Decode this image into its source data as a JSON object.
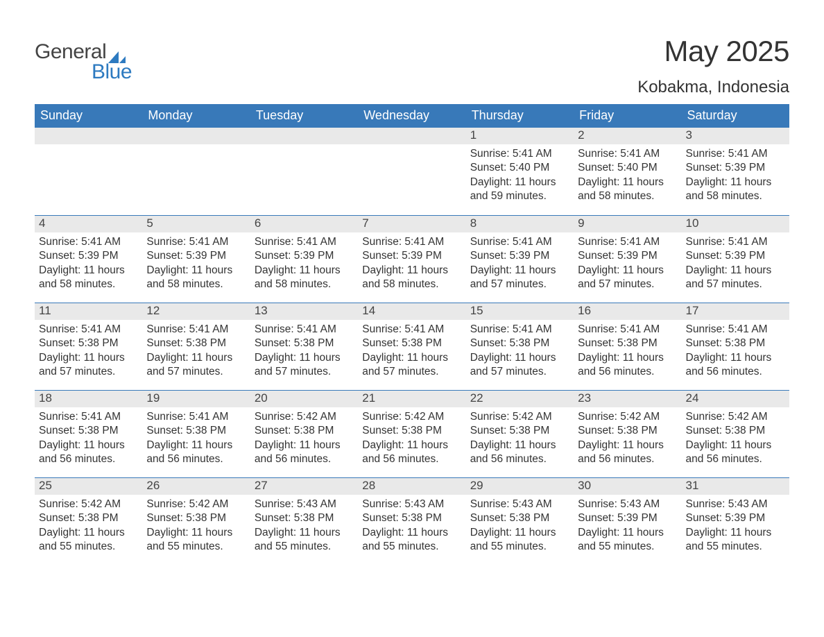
{
  "logo": {
    "text1": "General",
    "text2": "Blue",
    "triangle_color": "#2d7ac0",
    "text_color": "#444444"
  },
  "title": "May 2025",
  "location": "Kobakma, Indonesia",
  "header_bg": "#3879b9",
  "header_fg": "#ffffff",
  "daynum_bg": "#e9e9e9",
  "border_color": "#3879b9",
  "text_color": "#333333",
  "body_font_size": 15.5,
  "dayHeaders": [
    "Sunday",
    "Monday",
    "Tuesday",
    "Wednesday",
    "Thursday",
    "Friday",
    "Saturday"
  ],
  "weeks": [
    [
      {
        "empty": true
      },
      {
        "empty": true
      },
      {
        "empty": true
      },
      {
        "empty": true
      },
      {
        "day": "1",
        "sunrise": "5:41 AM",
        "sunset": "5:40 PM",
        "daylight": "11 hours and 59 minutes."
      },
      {
        "day": "2",
        "sunrise": "5:41 AM",
        "sunset": "5:40 PM",
        "daylight": "11 hours and 58 minutes."
      },
      {
        "day": "3",
        "sunrise": "5:41 AM",
        "sunset": "5:39 PM",
        "daylight": "11 hours and 58 minutes."
      }
    ],
    [
      {
        "day": "4",
        "sunrise": "5:41 AM",
        "sunset": "5:39 PM",
        "daylight": "11 hours and 58 minutes."
      },
      {
        "day": "5",
        "sunrise": "5:41 AM",
        "sunset": "5:39 PM",
        "daylight": "11 hours and 58 minutes."
      },
      {
        "day": "6",
        "sunrise": "5:41 AM",
        "sunset": "5:39 PM",
        "daylight": "11 hours and 58 minutes."
      },
      {
        "day": "7",
        "sunrise": "5:41 AM",
        "sunset": "5:39 PM",
        "daylight": "11 hours and 58 minutes."
      },
      {
        "day": "8",
        "sunrise": "5:41 AM",
        "sunset": "5:39 PM",
        "daylight": "11 hours and 57 minutes."
      },
      {
        "day": "9",
        "sunrise": "5:41 AM",
        "sunset": "5:39 PM",
        "daylight": "11 hours and 57 minutes."
      },
      {
        "day": "10",
        "sunrise": "5:41 AM",
        "sunset": "5:39 PM",
        "daylight": "11 hours and 57 minutes."
      }
    ],
    [
      {
        "day": "11",
        "sunrise": "5:41 AM",
        "sunset": "5:38 PM",
        "daylight": "11 hours and 57 minutes."
      },
      {
        "day": "12",
        "sunrise": "5:41 AM",
        "sunset": "5:38 PM",
        "daylight": "11 hours and 57 minutes."
      },
      {
        "day": "13",
        "sunrise": "5:41 AM",
        "sunset": "5:38 PM",
        "daylight": "11 hours and 57 minutes."
      },
      {
        "day": "14",
        "sunrise": "5:41 AM",
        "sunset": "5:38 PM",
        "daylight": "11 hours and 57 minutes."
      },
      {
        "day": "15",
        "sunrise": "5:41 AM",
        "sunset": "5:38 PM",
        "daylight": "11 hours and 57 minutes."
      },
      {
        "day": "16",
        "sunrise": "5:41 AM",
        "sunset": "5:38 PM",
        "daylight": "11 hours and 56 minutes."
      },
      {
        "day": "17",
        "sunrise": "5:41 AM",
        "sunset": "5:38 PM",
        "daylight": "11 hours and 56 minutes."
      }
    ],
    [
      {
        "day": "18",
        "sunrise": "5:41 AM",
        "sunset": "5:38 PM",
        "daylight": "11 hours and 56 minutes."
      },
      {
        "day": "19",
        "sunrise": "5:41 AM",
        "sunset": "5:38 PM",
        "daylight": "11 hours and 56 minutes."
      },
      {
        "day": "20",
        "sunrise": "5:42 AM",
        "sunset": "5:38 PM",
        "daylight": "11 hours and 56 minutes."
      },
      {
        "day": "21",
        "sunrise": "5:42 AM",
        "sunset": "5:38 PM",
        "daylight": "11 hours and 56 minutes."
      },
      {
        "day": "22",
        "sunrise": "5:42 AM",
        "sunset": "5:38 PM",
        "daylight": "11 hours and 56 minutes."
      },
      {
        "day": "23",
        "sunrise": "5:42 AM",
        "sunset": "5:38 PM",
        "daylight": "11 hours and 56 minutes."
      },
      {
        "day": "24",
        "sunrise": "5:42 AM",
        "sunset": "5:38 PM",
        "daylight": "11 hours and 56 minutes."
      }
    ],
    [
      {
        "day": "25",
        "sunrise": "5:42 AM",
        "sunset": "5:38 PM",
        "daylight": "11 hours and 55 minutes."
      },
      {
        "day": "26",
        "sunrise": "5:42 AM",
        "sunset": "5:38 PM",
        "daylight": "11 hours and 55 minutes."
      },
      {
        "day": "27",
        "sunrise": "5:43 AM",
        "sunset": "5:38 PM",
        "daylight": "11 hours and 55 minutes."
      },
      {
        "day": "28",
        "sunrise": "5:43 AM",
        "sunset": "5:38 PM",
        "daylight": "11 hours and 55 minutes."
      },
      {
        "day": "29",
        "sunrise": "5:43 AM",
        "sunset": "5:38 PM",
        "daylight": "11 hours and 55 minutes."
      },
      {
        "day": "30",
        "sunrise": "5:43 AM",
        "sunset": "5:39 PM",
        "daylight": "11 hours and 55 minutes."
      },
      {
        "day": "31",
        "sunrise": "5:43 AM",
        "sunset": "5:39 PM",
        "daylight": "11 hours and 55 minutes."
      }
    ]
  ],
  "labels": {
    "sunrise": "Sunrise: ",
    "sunset": "Sunset: ",
    "daylight": "Daylight: "
  }
}
